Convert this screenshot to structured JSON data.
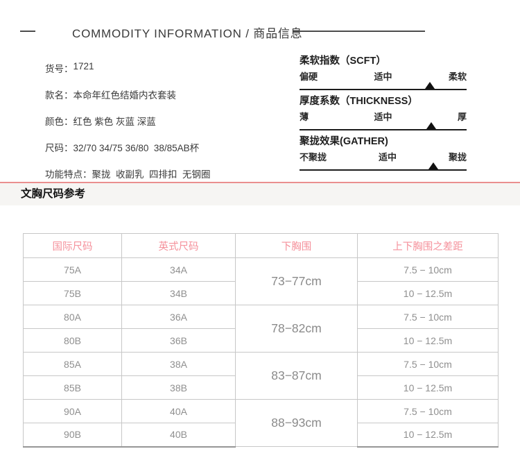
{
  "header": {
    "title": "COMMODITY INFORMATION / 商品信息"
  },
  "product_info": {
    "fields": [
      {
        "label": "货号：",
        "value": "1721"
      },
      {
        "label": "款名：",
        "value": "本命年红色结婚内衣套装"
      },
      {
        "label": "颜色：",
        "value": "红色 紫色 灰蓝 深蓝"
      },
      {
        "label": "尺码：",
        "value": "32/70 34/75 36/80  38/85AB杯"
      },
      {
        "label": "功能特点：",
        "value": "聚拢  收副乳  四排扣  无钢圈"
      }
    ]
  },
  "indicators": [
    {
      "title": "柔软指数（SCFT）",
      "scale": {
        "left": "偏硬",
        "center": "适中",
        "right": "柔软"
      },
      "marker_percent": 78
    },
    {
      "title": "厚度系数（THICKNESS）",
      "scale": {
        "left": "薄",
        "center": "适中",
        "right": "厚"
      },
      "marker_percent": 79
    },
    {
      "title": "聚拢效果(GATHER)",
      "scale": {
        "left": "不聚拢",
        "center": "适中",
        "right": "聚拢"
      },
      "marker_percent": 80
    }
  ],
  "size_reference": {
    "section_title": "文胸尺码参考",
    "accent_color": "#ea8f8f",
    "header_text_color": "#f5919b",
    "table": {
      "headers": [
        "国际尺码",
        "英式尺码",
        "下胸围",
        "上下胸围之差距"
      ],
      "groups": [
        {
          "underbust": "73−77cm",
          "rows": [
            {
              "intl": "75A",
              "uk": "34A",
              "diff": "7.5 − 10cm"
            },
            {
              "intl": "75B",
              "uk": "34B",
              "diff": "10 − 12.5m"
            }
          ]
        },
        {
          "underbust": "78−82cm",
          "rows": [
            {
              "intl": "80A",
              "uk": "36A",
              "diff": "7.5 − 10cm"
            },
            {
              "intl": "80B",
              "uk": "36B",
              "diff": "10 − 12.5m"
            }
          ]
        },
        {
          "underbust": "83−87cm",
          "rows": [
            {
              "intl": "85A",
              "uk": "38A",
              "diff": "7.5 − 10cm"
            },
            {
              "intl": "85B",
              "uk": "38B",
              "diff": "10 − 12.5m"
            }
          ]
        },
        {
          "underbust": "88−93cm",
          "rows": [
            {
              "intl": "90A",
              "uk": "40A",
              "diff": "7.5 − 10cm"
            },
            {
              "intl": "90B",
              "uk": "40B",
              "diff": "10 − 12.5m"
            }
          ]
        }
      ]
    }
  }
}
